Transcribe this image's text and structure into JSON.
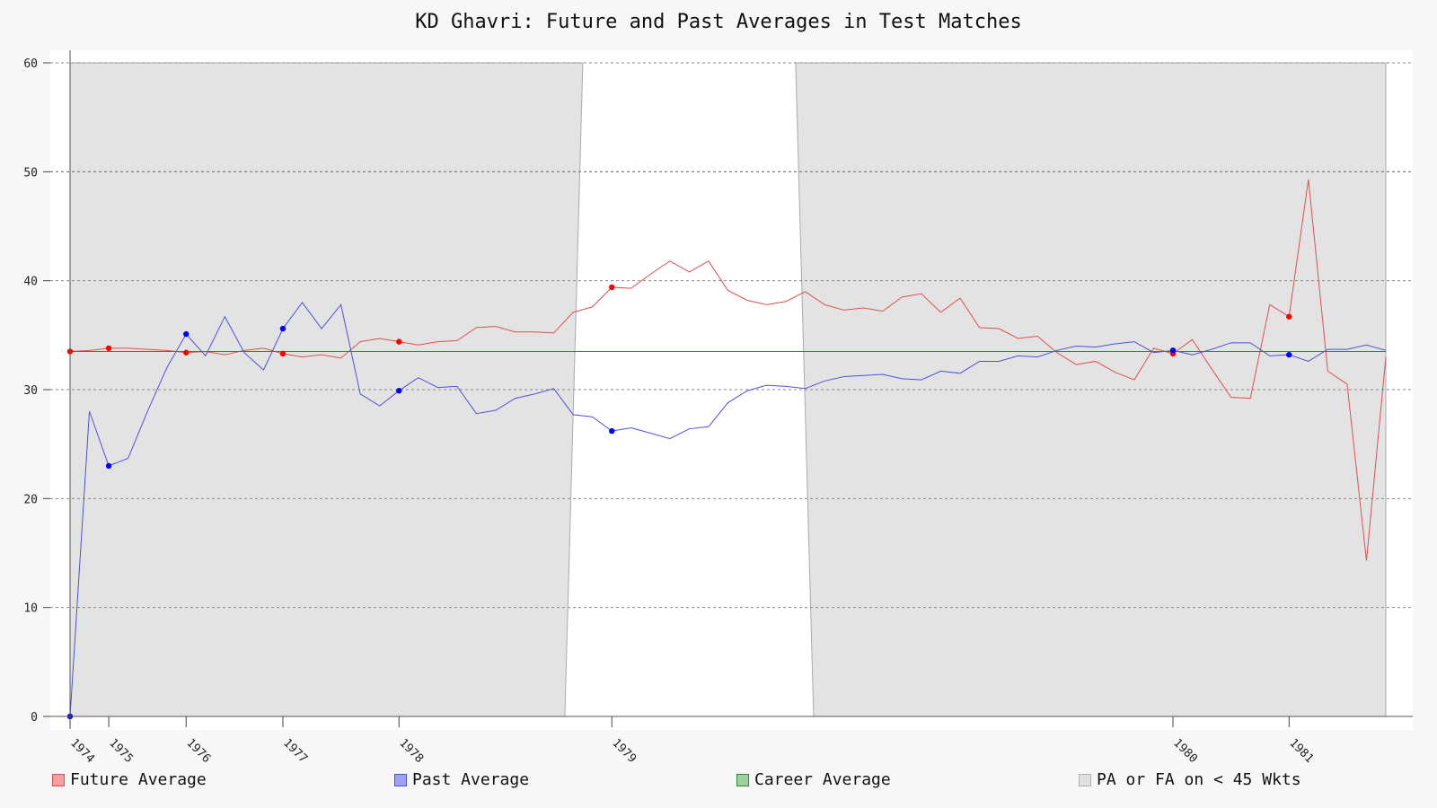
{
  "chart_data": {
    "type": "line",
    "title": "KD Ghavri: Future and Past Averages in Test Matches",
    "xlabel": "",
    "ylabel": "",
    "ylim": [
      0,
      60
    ],
    "yticks": [
      0,
      10,
      20,
      30,
      40,
      50,
      60
    ],
    "grid": true,
    "legend_position": "bottom",
    "x_year_ticks": [
      {
        "label": "1974",
        "index": 0
      },
      {
        "label": "1975",
        "index": 2
      },
      {
        "label": "1976",
        "index": 6
      },
      {
        "label": "1977",
        "index": 11
      },
      {
        "label": "1978",
        "index": 17
      },
      {
        "label": "1979",
        "index": 28
      },
      {
        "label": "1980",
        "index": 57
      },
      {
        "label": "1981",
        "index": 63
      }
    ],
    "x_count": 69,
    "shaded_regions": [
      {
        "name": "PA or FA on < 45 Wkts",
        "from_index": 0,
        "to_index": 26.5
      },
      {
        "name": "PA or FA on < 45 Wkts",
        "from_index": 37.5,
        "to_index": 68
      }
    ],
    "series": [
      {
        "name": "Future Average",
        "color": "#e05050",
        "marker_color": "#ff0000",
        "values": [
          33.5,
          33.6,
          33.8,
          33.8,
          33.7,
          33.6,
          33.4,
          33.5,
          33.2,
          33.6,
          33.8,
          33.3,
          33.0,
          33.2,
          32.9,
          34.4,
          34.7,
          34.4,
          34.1,
          34.4,
          34.5,
          35.7,
          35.8,
          35.3,
          35.3,
          35.2,
          37.1,
          37.6,
          39.4,
          39.3,
          40.6,
          41.8,
          40.8,
          41.8,
          39.1,
          38.2,
          37.8,
          38.1,
          39.0,
          37.8,
          37.3,
          37.5,
          37.2,
          38.5,
          38.8,
          37.1,
          38.4,
          35.7,
          35.6,
          34.7,
          34.9,
          33.4,
          32.3,
          32.6,
          31.6,
          30.9,
          33.8,
          33.3,
          34.6,
          31.9,
          29.3,
          29.2,
          37.8,
          36.7,
          49.3,
          31.7,
          30.5,
          14.3,
          33.0
        ],
        "marker_indices": [
          0,
          2,
          6,
          11,
          17,
          28,
          57,
          63
        ]
      },
      {
        "name": "Past Average",
        "color": "#5050e0",
        "marker_color": "#0000ff",
        "values": [
          0,
          28.0,
          23.0,
          23.7,
          28.0,
          32.0,
          35.1,
          33.1,
          36.7,
          33.4,
          31.8,
          35.6,
          38.0,
          35.6,
          37.8,
          29.6,
          28.5,
          29.9,
          31.1,
          30.2,
          30.3,
          27.8,
          28.1,
          29.2,
          29.6,
          30.1,
          27.7,
          27.5,
          26.2,
          26.5,
          26.0,
          25.5,
          26.4,
          26.6,
          28.8,
          29.9,
          30.4,
          30.3,
          30.1,
          30.8,
          31.2,
          31.3,
          31.4,
          31.0,
          30.9,
          31.7,
          31.5,
          32.6,
          32.6,
          33.1,
          33.0,
          33.6,
          34.0,
          33.9,
          34.2,
          34.4,
          33.4,
          33.6,
          33.2,
          33.7,
          34.3,
          34.3,
          33.1,
          33.2,
          32.6,
          33.7,
          33.7,
          34.1,
          33.6
        ],
        "marker_indices": [
          0,
          2,
          6,
          11,
          17,
          28,
          57,
          63
        ]
      },
      {
        "name": "Career Average",
        "color": "#2e8b2e",
        "constant": 33.5
      }
    ]
  },
  "legend": {
    "future": "Future Average",
    "past": "Past Average",
    "career": "Career Average",
    "shade": "PA or FA on < 45 Wkts"
  },
  "colors": {
    "future_swatch_fill": "#f4a0a0",
    "future_swatch_border": "#e05050",
    "past_swatch_fill": "#a0a0f4",
    "past_swatch_border": "#5050e0",
    "career_swatch_fill": "#a0d0a0",
    "career_swatch_border": "#2e8b2e",
    "shade_swatch_fill": "#e0e0e0",
    "shade_swatch_border": "#b0b0b0"
  }
}
